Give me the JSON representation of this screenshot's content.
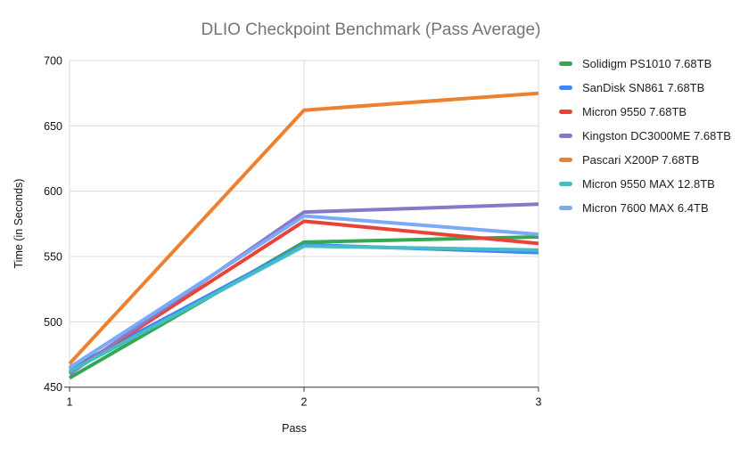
{
  "title": "DLIO Checkpoint Benchmark (Pass Average)",
  "colors": {
    "title_text": "#757575",
    "axis_text": "#111111",
    "legend_text": "#212121",
    "gridline": "#d9d9d9",
    "axis_line": "#333333",
    "background": "#ffffff"
  },
  "chart_data": {
    "type": "line",
    "title": "DLIO Checkpoint Benchmark (Pass Average)",
    "xlabel": "Pass",
    "ylabel": "Time (in Seconds)",
    "x": [
      "1",
      "2",
      "3"
    ],
    "ylim": [
      450,
      700
    ],
    "y_ticks": [
      450,
      500,
      550,
      600,
      650,
      700
    ],
    "grid": true,
    "legend_position": "right",
    "line_width": 4,
    "series": [
      {
        "name": "Solidigm PS1010 7.68TB",
        "color": "#34a853",
        "values": [
          457,
          561,
          565
        ]
      },
      {
        "name": "SanDisk SN861 7.68TB",
        "color": "#4285f4",
        "values": [
          464,
          559,
          553
        ]
      },
      {
        "name": "Micron 9550 7.68TB",
        "color": "#ea4335",
        "values": [
          461,
          577,
          560
        ]
      },
      {
        "name": "Kingston DC3000ME 7.68TB",
        "color": "#8a77c6",
        "values": [
          460,
          584,
          590
        ]
      },
      {
        "name": "Pascari X200P 7.68TB",
        "color": "#ee8130",
        "values": [
          468,
          662,
          675
        ]
      },
      {
        "name": "Micron 9550 MAX 12.8TB",
        "color": "#46bdc6",
        "values": [
          462,
          558,
          555
        ]
      },
      {
        "name": "Micron 7600 MAX 6.4TB",
        "color": "#7baaf7",
        "values": [
          465,
          581,
          567
        ]
      }
    ]
  }
}
